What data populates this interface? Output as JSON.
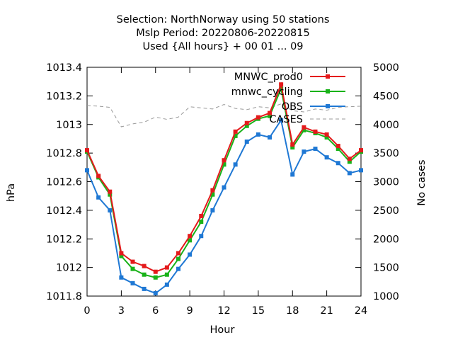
{
  "chart_data": {
    "type": "line",
    "title_lines": [
      "Selection: NorthNorway using    50 stations",
      "Mslp   Period: 20220806-20220815",
      "Used {All hours} + 00 01 ... 09"
    ],
    "xlabel": "Hour",
    "ylabel": "hPa",
    "y2label": "No cases",
    "xlim": [
      0,
      24
    ],
    "ylim": [
      1011.8,
      1013.4
    ],
    "y2lim": [
      1000,
      5000
    ],
    "x_ticks": [
      0,
      3,
      6,
      9,
      12,
      15,
      18,
      21,
      24
    ],
    "y_ticks": [
      "1011.8",
      "1012",
      "1012.2",
      "1012.4",
      "1012.6",
      "1012.8",
      "1013",
      "1013.2",
      "1013.4"
    ],
    "y2_ticks": [
      "1000",
      "1500",
      "2000",
      "2500",
      "3000",
      "3500",
      "4000",
      "4500",
      "5000"
    ],
    "grid": false,
    "legend_position": "top-right",
    "x": [
      0,
      1,
      2,
      3,
      4,
      5,
      6,
      7,
      8,
      9,
      10,
      11,
      12,
      13,
      14,
      15,
      16,
      17,
      18,
      19,
      20,
      21,
      22,
      23,
      24
    ],
    "series": [
      {
        "name": "MNWC_prod0",
        "color": "#e41a1c",
        "axis": "y1",
        "style": "solid-marker",
        "values": [
          1012.82,
          1012.64,
          1012.53,
          1012.1,
          1012.04,
          1012.01,
          1011.97,
          1012.0,
          1012.1,
          1012.22,
          1012.36,
          1012.54,
          1012.75,
          1012.95,
          1013.01,
          1013.05,
          1013.08,
          1013.28,
          1012.86,
          1012.98,
          1012.95,
          1012.93,
          1012.85,
          1012.76,
          1012.82
        ]
      },
      {
        "name": "mnwc_cycling",
        "color": "#19b219",
        "axis": "y1",
        "style": "solid-marker",
        "values": [
          1012.81,
          1012.63,
          1012.51,
          1012.08,
          1011.99,
          1011.95,
          1011.93,
          1011.95,
          1012.06,
          1012.19,
          1012.32,
          1012.51,
          1012.72,
          1012.92,
          1012.99,
          1013.04,
          1013.06,
          1013.25,
          1012.84,
          1012.96,
          1012.94,
          1012.91,
          1012.83,
          1012.74,
          1012.81
        ]
      },
      {
        "name": "OBS",
        "color": "#1f78d4",
        "axis": "y1",
        "style": "solid-marker",
        "values": [
          1012.68,
          1012.49,
          1012.4,
          1011.93,
          1011.89,
          1011.85,
          1011.82,
          1011.88,
          1011.99,
          1012.09,
          1012.22,
          1012.4,
          1012.56,
          1012.72,
          1012.88,
          1012.93,
          1012.91,
          1013.03,
          1012.65,
          1012.81,
          1012.83,
          1012.77,
          1012.73,
          1012.66,
          1012.68
        ]
      },
      {
        "name": "CASES",
        "color": "#999999",
        "axis": "y2",
        "style": "dashed",
        "values": [
          4330,
          4320,
          4300,
          3960,
          4010,
          4040,
          4130,
          4090,
          4130,
          4310,
          4290,
          4270,
          4350,
          4280,
          4260,
          4310,
          4290,
          4360,
          4240,
          4220,
          4270,
          4250,
          4300,
          4310,
          4320
        ]
      }
    ]
  }
}
